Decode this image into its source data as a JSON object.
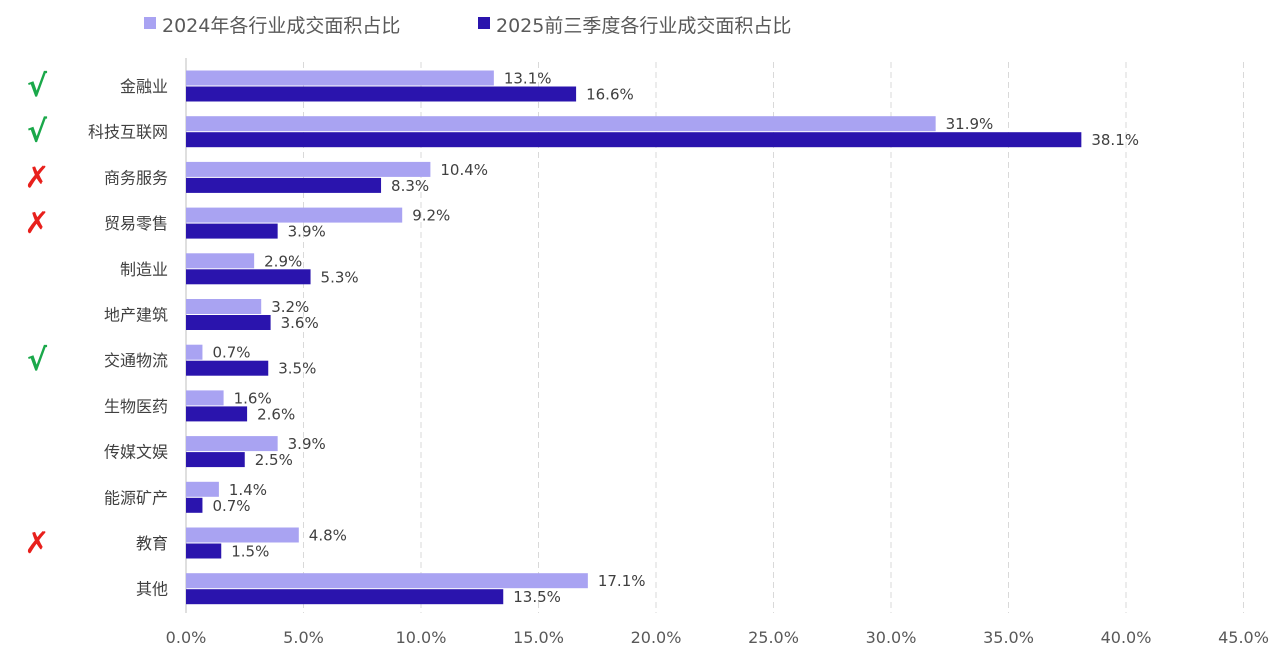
{
  "chart_data": {
    "type": "bar",
    "orientation": "horizontal",
    "categories": [
      "金融业",
      "科技互联网",
      "商务服务",
      "贸易零售",
      "制造业",
      "地产建筑",
      "交通物流",
      "生物医药",
      "传媒文娱",
      "能源矿产",
      "教育",
      "其他"
    ],
    "series": [
      {
        "name": "2024年各行业成交面积占比",
        "color": "#a9a3f2",
        "values": [
          13.1,
          31.9,
          10.4,
          9.2,
          2.9,
          3.2,
          0.7,
          1.6,
          3.9,
          1.4,
          4.8,
          17.1
        ]
      },
      {
        "name": "2025前三季度各行业成交面积占比",
        "color": "#2a14ad",
        "values": [
          16.6,
          38.1,
          8.3,
          3.9,
          5.3,
          3.6,
          3.5,
          2.6,
          2.5,
          0.7,
          1.5,
          13.5
        ]
      }
    ],
    "markers": [
      "√",
      "√",
      "✗",
      "✗",
      "",
      "",
      "√",
      "",
      "",
      "",
      "✗",
      ""
    ],
    "xlim": [
      0,
      45
    ],
    "xticks": [
      0,
      5,
      10,
      15,
      20,
      25,
      30,
      35,
      40,
      45
    ],
    "tick_suffix": "%",
    "tick_decimals": 1,
    "grid": "vertical dashed",
    "legend_position": "top",
    "colors": {
      "check": "#1aa84a",
      "cross": "#e8201c",
      "grid": "#d9d9d9",
      "axis": "#bfbfbf"
    }
  }
}
